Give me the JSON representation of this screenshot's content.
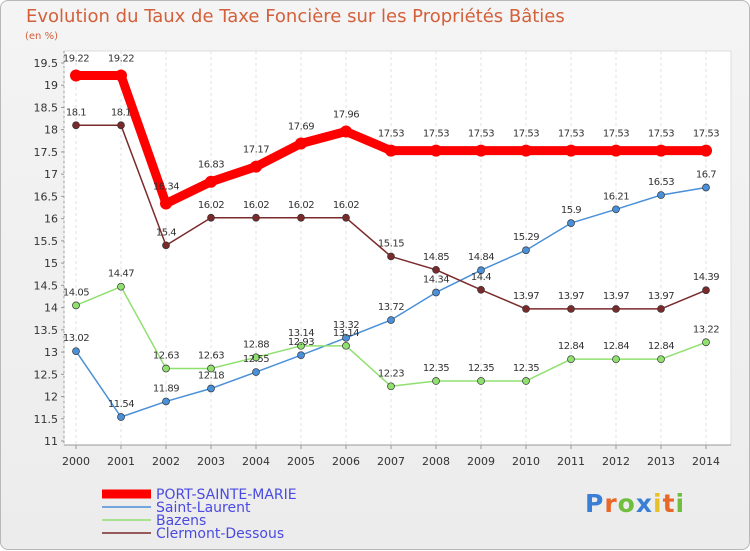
{
  "header": {
    "title": "Evolution du Taux de Taxe Foncière sur les Propriétés Bâties",
    "unit": "(en %)"
  },
  "logo": {
    "letters": [
      "P",
      "r",
      "o",
      "x",
      "i",
      "t",
      "i"
    ],
    "colors": [
      "#3a7fd5",
      "#e8682a",
      "#6fbf3c",
      "#3a7fd5",
      "#e8c12a",
      "#e8682a",
      "#6fbf3c"
    ]
  },
  "chart_data": {
    "type": "line",
    "title": "Evolution du Taux de Taxe Foncière sur les Propriétés Bâties",
    "ylabel": "(en %)",
    "xlabel": "",
    "x": [
      "2000",
      "2001",
      "2002",
      "2003",
      "2004",
      "2005",
      "2006",
      "2007",
      "2008",
      "2009",
      "2010",
      "2011",
      "2012",
      "2013",
      "2014"
    ],
    "ylim": [
      11,
      19.5
    ],
    "yticks": [
      "11",
      "11.5",
      "12",
      "12.5",
      "13",
      "13.5",
      "14",
      "14.5",
      "15",
      "15.5",
      "16",
      "16.5",
      "17",
      "17.5",
      "18",
      "18.5",
      "19",
      "19.5"
    ],
    "legend_position": "bottom-left",
    "series": [
      {
        "name": "PORT-SAINTE-MARIE",
        "color": "#ff0000",
        "values": [
          19.22,
          19.22,
          16.34,
          16.83,
          17.17,
          17.69,
          17.96,
          17.53,
          17.53,
          17.53,
          17.53,
          17.53,
          17.53,
          17.53,
          17.53
        ],
        "labels": [
          "19.22",
          "19.22",
          "16.34",
          "16.83",
          "17.17",
          "17.69",
          "17.96",
          "17.53",
          "17.53",
          "17.53",
          "17.53",
          "17.53",
          "17.53",
          "17.53",
          "17.53"
        ]
      },
      {
        "name": "Saint-Laurent",
        "color": "#4a90d9",
        "values": [
          13.02,
          11.54,
          11.89,
          12.18,
          12.55,
          12.93,
          13.32,
          13.72,
          14.34,
          14.84,
          15.29,
          15.9,
          16.21,
          16.53,
          16.7
        ],
        "labels": [
          "13.02",
          "11.54",
          "11.89",
          "12.18",
          "12.55",
          "12.93",
          "13.32",
          "13.72",
          "14.34",
          "14.84",
          "15.29",
          "15.9",
          "16.21",
          "16.53",
          "16.7"
        ]
      },
      {
        "name": "Bazens",
        "color": "#90e070",
        "values": [
          14.05,
          14.47,
          12.63,
          12.63,
          12.88,
          13.14,
          13.14,
          12.23,
          12.35,
          12.35,
          12.35,
          12.84,
          12.84,
          12.84,
          13.22
        ],
        "labels": [
          "14.05",
          "14.47",
          "12.63",
          "12.63",
          "12.88",
          "13.14",
          "13.14",
          "12.23",
          "12.35",
          "12.35",
          "12.35",
          "12.84",
          "12.84",
          "12.84",
          "13.22"
        ]
      },
      {
        "name": "Clermont-Dessous",
        "color": "#7a2a2a",
        "values": [
          18.1,
          18.1,
          15.4,
          16.02,
          16.02,
          16.02,
          16.02,
          15.15,
          14.85,
          14.4,
          13.97,
          13.97,
          13.97,
          13.97,
          14.39
        ],
        "labels": [
          "18.1",
          "18.1",
          "15.4",
          "16.02",
          "16.02",
          "16.02",
          "16.02",
          "15.15",
          "14.85",
          "14.4",
          "13.97",
          "13.97",
          "13.97",
          "13.97",
          "14.39"
        ]
      }
    ]
  }
}
